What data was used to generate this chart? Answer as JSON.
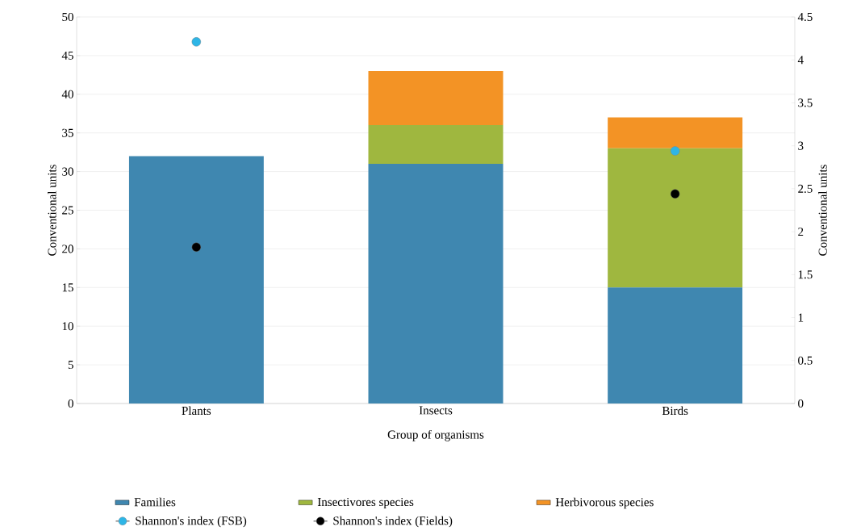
{
  "chart_data": {
    "type": "bar",
    "stacked": true,
    "xlabel": "Group of organisms",
    "ylabel": "Conventional units",
    "y2label": "Conventional units",
    "categories": [
      "Plants",
      "Insects",
      "Birds"
    ],
    "series": [
      {
        "name": "Families",
        "color": "#3f87b0",
        "values": [
          32,
          31,
          15
        ]
      },
      {
        "name": "Insectivores species",
        "color": "#9fb73f",
        "values": [
          0,
          5,
          18
        ]
      },
      {
        "name": "Herbivorous species",
        "color": "#f39325",
        "values": [
          0,
          7,
          4
        ]
      },
      {
        "name": "Shannon's index (FSB)",
        "type": "scatter",
        "axis": "y2",
        "color": "#2eb5e6",
        "values": [
          4.21,
          null,
          2.94
        ]
      },
      {
        "name": "Shannon's index (Fields)",
        "type": "scatter",
        "axis": "y2",
        "color": "#000000",
        "values": [
          1.82,
          null,
          2.44
        ]
      }
    ],
    "ylim": [
      0,
      50
    ],
    "yticks": [
      0,
      5,
      10,
      15,
      20,
      25,
      30,
      35,
      40,
      45,
      50
    ],
    "y2lim": [
      0,
      4.5
    ],
    "y2ticks": [
      0,
      0.5,
      1,
      1.5,
      2,
      2.5,
      3,
      3.5,
      4,
      4.5
    ],
    "grid": "y",
    "legend": "bottom",
    "marker": "circle"
  }
}
